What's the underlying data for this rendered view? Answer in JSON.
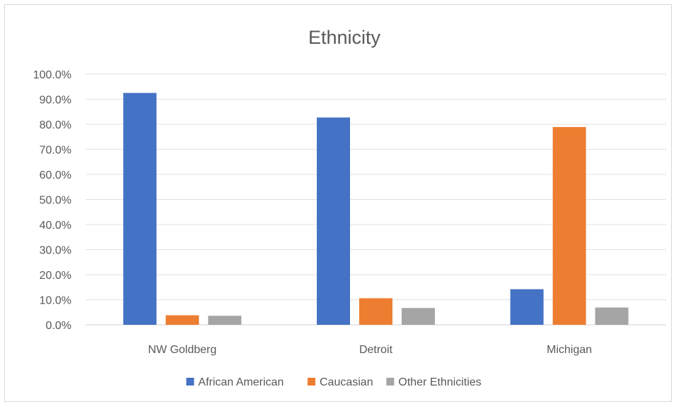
{
  "chart_data": {
    "type": "bar",
    "title": "Ethnicity",
    "xlabel": "",
    "ylabel": "",
    "categories": [
      "NW Goldberg",
      "Detroit",
      "Michigan"
    ],
    "series": [
      {
        "name": "African American",
        "values": [
          92.5,
          82.7,
          14.2
        ],
        "color": "#4472c4"
      },
      {
        "name": "Caucasian",
        "values": [
          3.8,
          10.6,
          78.9
        ],
        "color": "#ed7d31"
      },
      {
        "name": "Other Ethnicities",
        "values": [
          3.6,
          6.7,
          6.9
        ],
        "color": "#a5a5a5"
      }
    ],
    "ylim": [
      0,
      100
    ],
    "yticks": [
      "0.0%",
      "10.0%",
      "20.0%",
      "30.0%",
      "40.0%",
      "50.0%",
      "60.0%",
      "70.0%",
      "80.0%",
      "90.0%",
      "100.0%"
    ],
    "grid": true,
    "legend": "bottom"
  }
}
